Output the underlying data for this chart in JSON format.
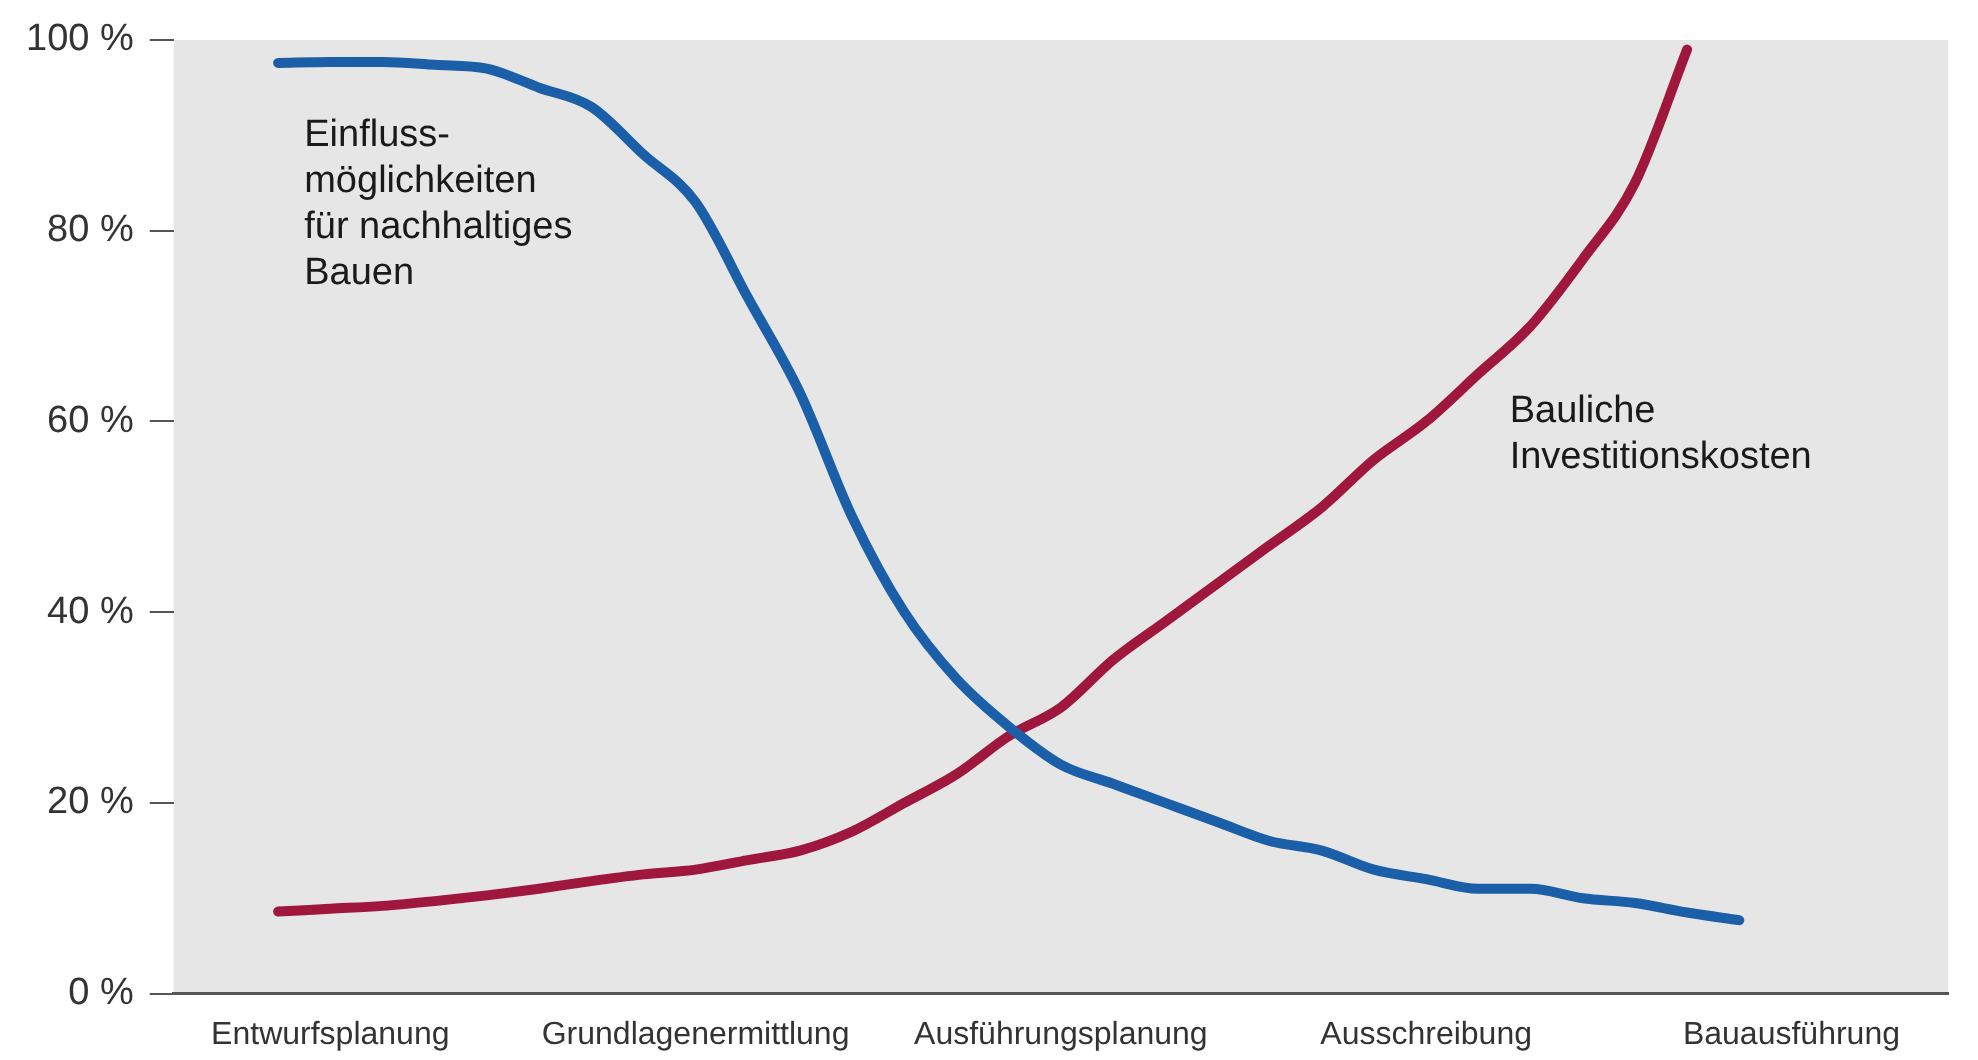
{
  "chart_data": {
    "type": "line",
    "categories": [
      null,
      null,
      null,
      "Entwurfsplanung",
      null,
      null,
      null,
      null,
      null,
      null,
      "Grundlagenermittlung",
      null,
      null,
      null,
      null,
      null,
      null,
      "Ausführungsplanung",
      null,
      null,
      null,
      null,
      null,
      null,
      "Ausschreibung",
      null,
      null,
      null,
      null,
      null,
      null,
      "Bauausführung",
      null,
      null,
      null
    ],
    "ylim": [
      0,
      100
    ],
    "yticks": [
      {
        "value": 0,
        "label": "0 %"
      },
      {
        "value": 20,
        "label": "20 %"
      },
      {
        "value": 40,
        "label": "40 %"
      },
      {
        "value": 60,
        "label": "60 %"
      },
      {
        "value": 80,
        "label": "80 %"
      },
      {
        "value": 100,
        "label": "100 %"
      }
    ],
    "grid": false,
    "legend": false,
    "marker": "none",
    "line_style": "solid",
    "series": [
      {
        "name": "Einfluss-\nmöglichkeiten\nfür nachhaltiges\nBauen",
        "color": "#1a5fa8",
        "values": [
          null,
          null,
          97.6,
          97.7,
          97.7,
          97.4,
          97,
          95,
          93,
          88,
          83,
          73,
          63,
          50,
          40,
          33,
          28,
          24,
          22,
          20,
          18,
          16,
          15,
          13,
          12,
          11,
          11,
          10,
          9.5,
          8.5,
          7.7,
          null,
          null,
          null,
          null
        ]
      },
      {
        "name": "Bauliche\nInvestitionskosten",
        "color": "#a0173e",
        "values": [
          null,
          null,
          8.6,
          8.9,
          9.2,
          9.7,
          10.3,
          11,
          11.8,
          12.5,
          13,
          14,
          15,
          17,
          20,
          23,
          27,
          30,
          35,
          39,
          43,
          47,
          51,
          56,
          60,
          65,
          70,
          77,
          85,
          99,
          null,
          null,
          null,
          null,
          null
        ]
      }
    ]
  }
}
